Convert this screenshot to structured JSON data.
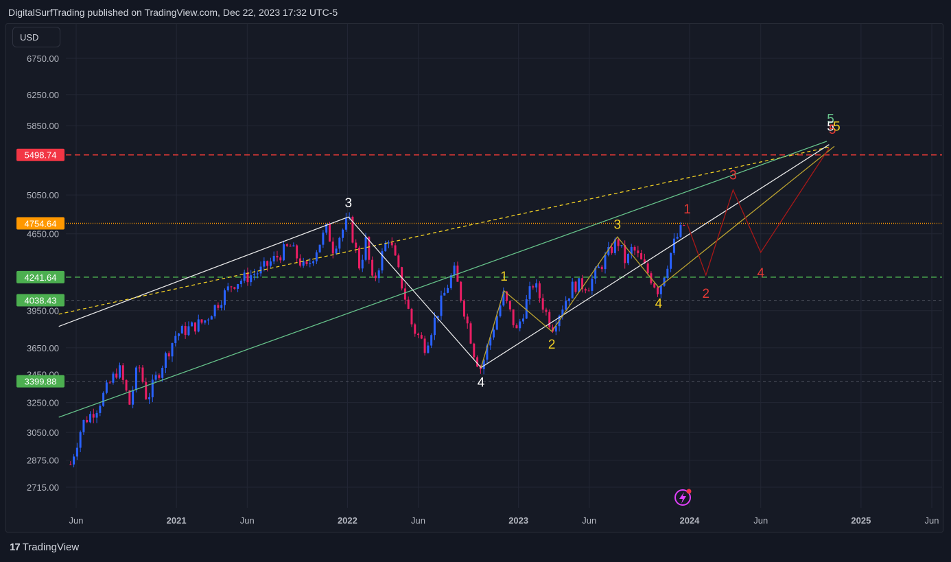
{
  "header": {
    "publish_line": "DigitalSurfTrading published on TradingView.com, Dec 22, 2023 17:32 UTC-5"
  },
  "currency_button": "USD",
  "footer": {
    "brand": "TradingView",
    "logo_icon": "tradingview-logo-icon"
  },
  "colors": {
    "background": "#131722",
    "grid": "#232735",
    "up": "#2962ff",
    "down": "#e91e63",
    "white_line": "#e8e8e8",
    "green_line": "#66c28a",
    "yellow_dash": "#f2d024",
    "olive_line": "#b8a030",
    "red_line": "#a81818",
    "red_dash": "#e53935",
    "green_dash": "#4caf50",
    "orange_dot": "#ff9800"
  },
  "chart_data": {
    "type": "candlestick",
    "title": "",
    "xlabel": "",
    "ylabel": "",
    "ylim": [
      2600,
      6900
    ],
    "x_tick_labels": [
      "Jun",
      "2021",
      "Jun",
      "2022",
      "Jun",
      "2023",
      "Jun",
      "2024",
      "Jun",
      "2025",
      "Jun"
    ],
    "y_tick_labels": [
      "6750.00",
      "6250.00",
      "5850.00",
      "5050.00",
      "4650.00",
      "3950.00",
      "3650.00",
      "3450.00",
      "3250.00",
      "3050.00",
      "2875.00",
      "2715.00"
    ],
    "price_tags": [
      {
        "label": "5498.74",
        "value": 5498.74,
        "color": "#f23645"
      },
      {
        "label": "4754.64",
        "value": 4754.64,
        "color": "#ff9800"
      },
      {
        "label": "4241.64",
        "value": 4241.64,
        "color": "#4caf50"
      },
      {
        "label": "4038.43",
        "value": 4038.43,
        "color": "#4caf50"
      },
      {
        "label": "3399.88",
        "value": 3399.88,
        "color": "#4caf50"
      }
    ],
    "horizontal_levels": [
      {
        "value": 5498.74,
        "style": "dashed",
        "color": "#e53935"
      },
      {
        "value": 4754.64,
        "style": "dotted",
        "color": "#ff9800"
      },
      {
        "value": 4241.64,
        "style": "dashed",
        "color": "#4caf50"
      },
      {
        "value": 4038.43,
        "style": "dashed-faint",
        "color": "#666a75"
      },
      {
        "value": 3399.88,
        "style": "dashed-faint",
        "color": "#666a75"
      }
    ],
    "price_path": [
      [
        "2020-05-20",
        2850
      ],
      [
        "2020-06-15",
        3110
      ],
      [
        "2020-07-15",
        3215
      ],
      [
        "2020-08-31",
        3500
      ],
      [
        "2020-09-23",
        3240
      ],
      [
        "2020-10-12",
        3530
      ],
      [
        "2020-10-30",
        3270
      ],
      [
        "2020-12-31",
        3756
      ],
      [
        "2021-03-01",
        3860
      ],
      [
        "2021-04-30",
        4180
      ],
      [
        "2021-06-30",
        4300
      ],
      [
        "2021-08-31",
        4530
      ],
      [
        "2021-10-04",
        4300
      ],
      [
        "2021-11-18",
        4700
      ],
      [
        "2021-12-01",
        4510
      ],
      [
        "2022-01-03",
        4796
      ],
      [
        "2022-01-27",
        4330
      ],
      [
        "2022-02-09",
        4580
      ],
      [
        "2022-02-24",
        4170
      ],
      [
        "2022-03-29",
        4630
      ],
      [
        "2022-05-20",
        3810
      ],
      [
        "2022-06-16",
        3660
      ],
      [
        "2022-08-16",
        4305
      ],
      [
        "2022-09-30",
        3585
      ],
      [
        "2022-10-13",
        3490
      ],
      [
        "2022-11-30",
        4080
      ],
      [
        "2022-12-28",
        3780
      ],
      [
        "2023-02-02",
        4195
      ],
      [
        "2023-03-13",
        3810
      ],
      [
        "2023-04-28",
        4170
      ],
      [
        "2023-05-31",
        4170
      ],
      [
        "2023-07-31",
        4590
      ],
      [
        "2023-08-18",
        4370
      ],
      [
        "2023-09-01",
        4515
      ],
      [
        "2023-10-27",
        4117
      ],
      [
        "2023-11-30",
        4570
      ],
      [
        "2023-12-22",
        4755
      ]
    ],
    "drawings": [
      {
        "name": "white-upper-channel",
        "color": "#e8e8e8",
        "points": [
          [
            "2020-04-25",
            3820
          ],
          [
            "2022-01-03",
            4820
          ]
        ]
      },
      {
        "name": "yellow-dashed-channel",
        "color": "#f2d024",
        "dash": true,
        "points": [
          [
            "2020-04-25",
            3920
          ],
          [
            "2024-10-25",
            5590
          ]
        ]
      },
      {
        "name": "green-lower-channel",
        "color": "#66c28a",
        "points": [
          [
            "2020-04-25",
            3150
          ],
          [
            "2024-10-20",
            5660
          ]
        ]
      },
      {
        "name": "white-wave-path",
        "color": "#e8e8e8",
        "points": [
          [
            "2022-01-03",
            4820
          ],
          [
            "2022-10-13",
            3500
          ],
          [
            "2024-10-25",
            5620
          ]
        ]
      },
      {
        "name": "olive-wave-path",
        "color": "#b8a030",
        "points": [
          [
            "2022-10-13",
            3500
          ],
          [
            "2022-12-01",
            4120
          ],
          [
            "2023-03-13",
            3780
          ],
          [
            "2023-07-31",
            4620
          ],
          [
            "2023-10-27",
            4150
          ],
          [
            "2024-11-05",
            5600
          ]
        ]
      },
      {
        "name": "red-projection-path",
        "color": "#a81818",
        "points": [
          [
            "2023-12-27",
            4750
          ],
          [
            "2024-02-05",
            4260
          ],
          [
            "2024-04-03",
            5105
          ],
          [
            "2024-06-01",
            4470
          ],
          [
            "2024-10-25",
            5580
          ]
        ]
      }
    ],
    "wave_labels": [
      {
        "text": "3",
        "color": "#ffffff",
        "x": "2022-01-03",
        "y": 4920
      },
      {
        "text": "4",
        "color": "#ffffff",
        "x": "2022-10-13",
        "y": 3360
      },
      {
        "text": "1",
        "color": "#f2d024",
        "x": "2022-12-01",
        "y": 4210
      },
      {
        "text": "2",
        "color": "#f2d024",
        "x": "2023-03-13",
        "y": 3645
      },
      {
        "text": "3",
        "color": "#f2d024",
        "x": "2023-07-31",
        "y": 4700
      },
      {
        "text": "4",
        "color": "#f2d024",
        "x": "2023-10-27",
        "y": 3975
      },
      {
        "text": "1",
        "color": "#e53935",
        "x": "2023-12-27",
        "y": 4855
      },
      {
        "text": "2",
        "color": "#e53935",
        "x": "2024-02-05",
        "y": 4060
      },
      {
        "text": "3",
        "color": "#e53935",
        "x": "2024-04-03",
        "y": 5220
      },
      {
        "text": "4",
        "color": "#e53935",
        "x": "2024-06-01",
        "y": 4240
      },
      {
        "text": "5",
        "color": "#66c28a",
        "x": "2024-10-28",
        "y": 5880
      },
      {
        "text": "5",
        "color": "#ffffff",
        "x": "2024-10-28",
        "y": 5790
      },
      {
        "text": "5",
        "color": "#e53935",
        "x": "2024-11-01",
        "y": 5750
      },
      {
        "text": "5",
        "color": "#f2d024",
        "x": "2024-11-10",
        "y": 5790
      }
    ]
  }
}
